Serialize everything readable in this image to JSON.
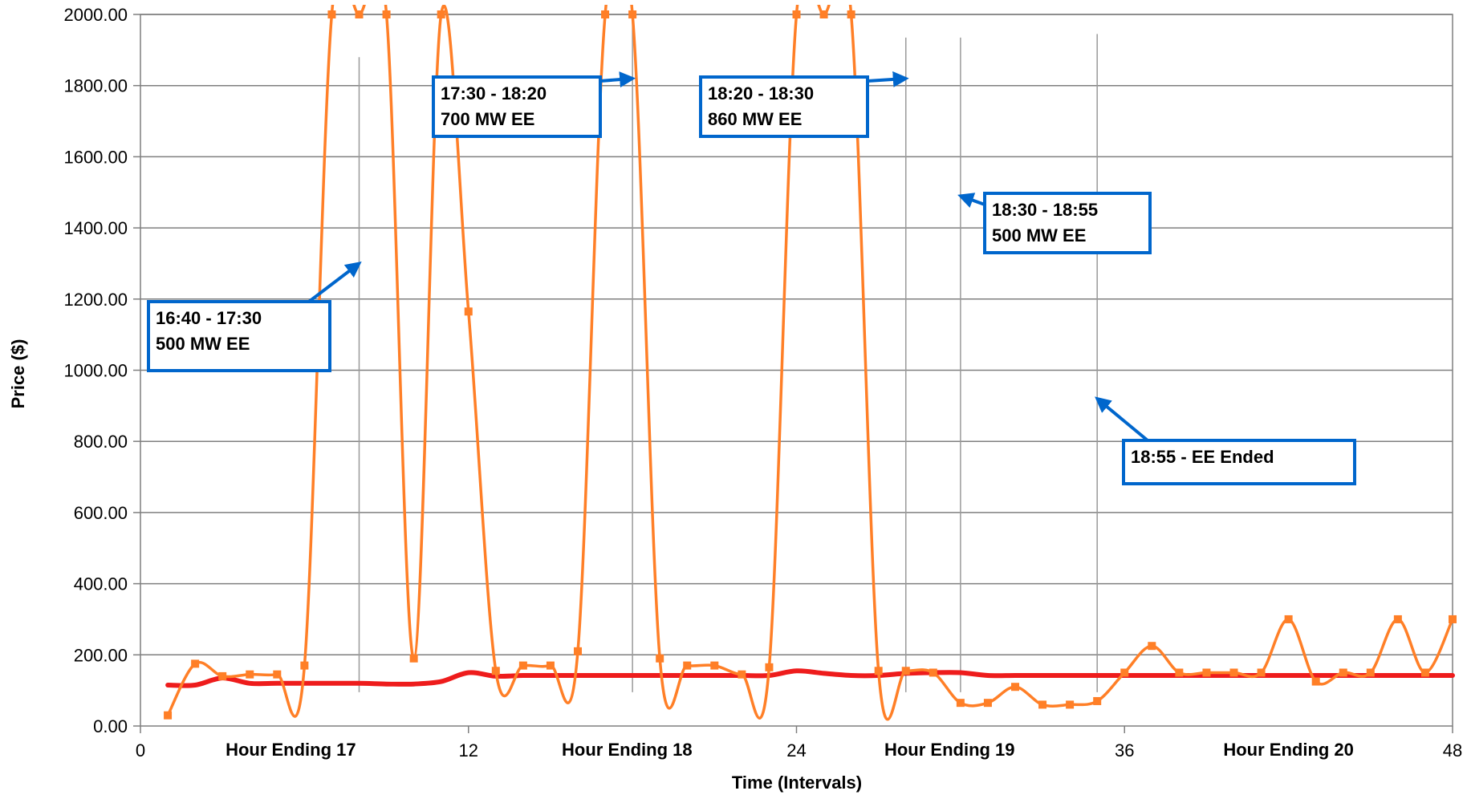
{
  "chart_data": {
    "type": "line",
    "xlabel": "Time (Intervals)",
    "ylabel": "Price ($)",
    "xlim": [
      0,
      48
    ],
    "ylim": [
      0,
      2000
    ],
    "xticks": [
      0,
      12,
      24,
      36,
      48
    ],
    "yticks": [
      0,
      200,
      400,
      600,
      800,
      1000,
      1200,
      1400,
      1600,
      1800,
      2000
    ],
    "ytick_labels": [
      "0.00",
      "200.00",
      "400.00",
      "600.00",
      "800.00",
      "1000.00",
      "1200.00",
      "1400.00",
      "1600.00",
      "1800.00",
      "2000.00"
    ],
    "grid": "horizontal",
    "hour_labels": [
      {
        "text": "Hour Ending 17",
        "x": 5.5
      },
      {
        "text": "Hour Ending 18",
        "x": 17.8
      },
      {
        "text": "Hour Ending 19",
        "x": 29.6
      },
      {
        "text": "Hour Ending 20",
        "x": 42
      }
    ],
    "series": [
      {
        "color": "#ff7f27",
        "marker": "square",
        "x": [
          1,
          2,
          3,
          4,
          5,
          6,
          7,
          8,
          9,
          10,
          11,
          12,
          13,
          14,
          15,
          16,
          17,
          18,
          19,
          20,
          21,
          22,
          23,
          24,
          25,
          26,
          27,
          28,
          29,
          30,
          31,
          32,
          33,
          34,
          35,
          36,
          37,
          38,
          39,
          40,
          41,
          42,
          43,
          44,
          45,
          46,
          47,
          48
        ],
        "values": [
          30,
          175,
          140,
          145,
          145,
          170,
          2000,
          2000,
          2000,
          190,
          2000,
          1165,
          155,
          170,
          170,
          210,
          2000,
          2000,
          190,
          170,
          170,
          145,
          165,
          2000,
          2000,
          2000,
          155,
          155,
          150,
          65,
          65,
          110,
          60,
          60,
          70,
          150,
          225,
          150,
          150,
          150,
          150,
          300,
          125,
          150,
          150,
          300,
          150,
          300
        ]
      },
      {
        "color": "#ee1c1c",
        "marker": "none",
        "x": [
          1,
          2,
          3,
          4,
          5,
          6,
          7,
          8,
          9,
          10,
          11,
          12,
          13,
          14,
          15,
          16,
          17,
          18,
          19,
          20,
          21,
          22,
          23,
          24,
          25,
          26,
          27,
          28,
          29,
          30,
          31,
          32,
          33,
          34,
          35,
          36,
          37,
          38,
          39,
          40,
          41,
          42,
          43,
          44,
          45,
          46,
          47,
          48
        ],
        "values": [
          115,
          115,
          135,
          120,
          120,
          120,
          120,
          120,
          118,
          118,
          125,
          150,
          140,
          142,
          142,
          142,
          142,
          142,
          142,
          142,
          142,
          142,
          142,
          155,
          148,
          142,
          142,
          148,
          150,
          150,
          142,
          142,
          142,
          142,
          142,
          142,
          142,
          142,
          142,
          142,
          142,
          142,
          142,
          142,
          142,
          142,
          142,
          142
        ]
      }
    ],
    "event_lines": [
      {
        "x": 8,
        "y_top": 1880,
        "y_bottom": 95
      },
      {
        "x": 18,
        "y_top": 2000,
        "y_bottom": 95
      },
      {
        "x": 28,
        "y_top": 1935,
        "y_bottom": 95
      },
      {
        "x": 30,
        "y_top": 1935,
        "y_bottom": 95
      },
      {
        "x": 35,
        "y_top": 1945,
        "y_bottom": 95
      }
    ],
    "annotations": [
      {
        "lines": [
          "16:40 - 17:30",
          "500 MW EE"
        ],
        "target_x": 8,
        "target_y": 1300
      },
      {
        "lines": [
          "17:30 - 18:20",
          "700 MW EE"
        ],
        "target_x": 18,
        "target_y": 1820
      },
      {
        "lines": [
          "18:20 - 18:30",
          "860 MW EE"
        ],
        "target_x": 28,
        "target_y": 1820
      },
      {
        "lines": [
          "18:30 - 18:55",
          "500 MW EE"
        ],
        "target_x": 30,
        "target_y": 1490
      },
      {
        "lines": [
          "18:55 - EE Ended"
        ],
        "target_x": 35,
        "target_y": 920
      }
    ]
  }
}
